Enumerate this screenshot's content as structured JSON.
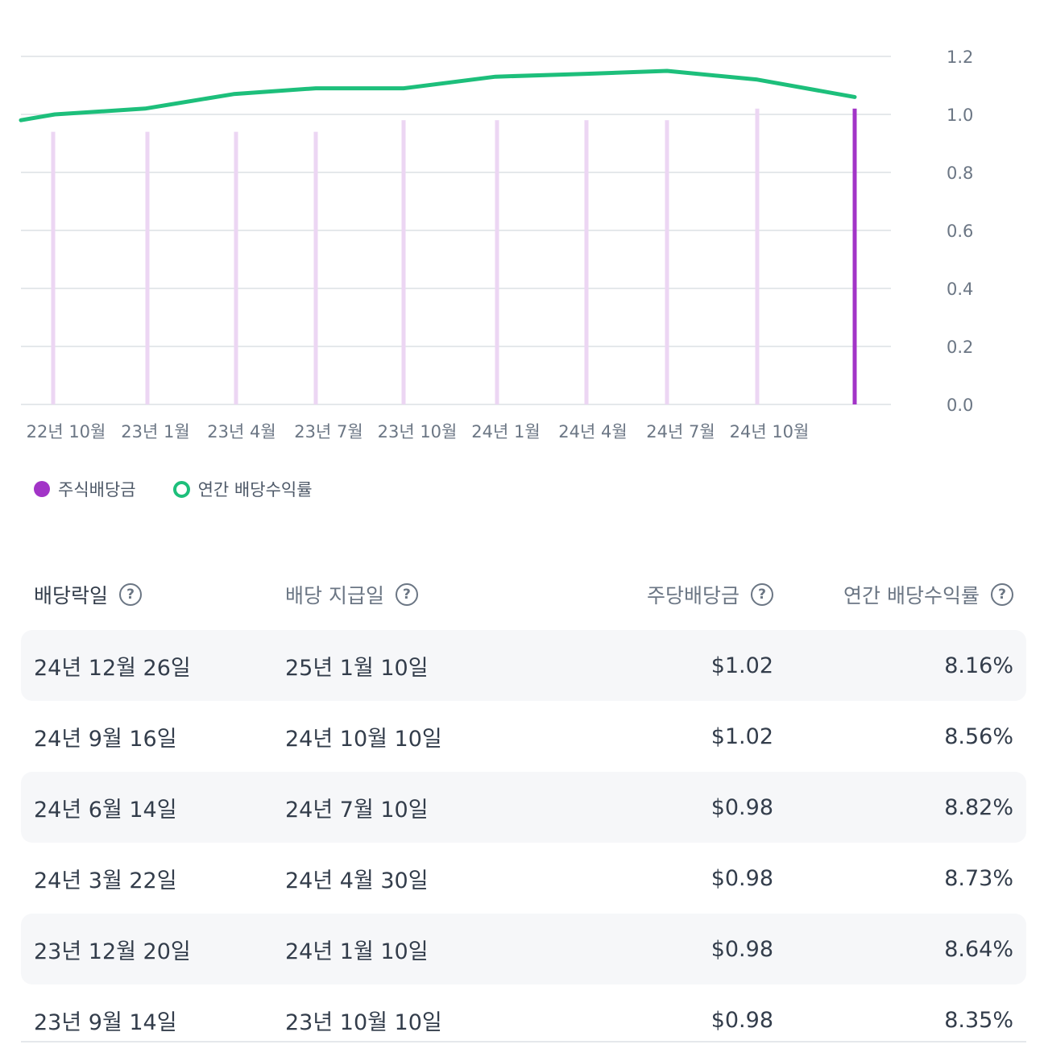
{
  "chart_data": {
    "type": "bar+line",
    "y_ticks": [
      "1.2",
      "1.0",
      "0.8",
      "0.6",
      "0.4",
      "0.2",
      "0.0"
    ],
    "ylim": [
      0,
      1.2
    ],
    "x_tick_labels": [
      "22년 10월",
      "23년 1월",
      "23년 4월",
      "23년 7월",
      "23년 10월",
      "24년 1월",
      "24년 4월",
      "24년 7월",
      "24년 10월"
    ],
    "grid": true,
    "bars": {
      "name": "주식배당금",
      "color_faded": "#ecd6f3",
      "color_highlight": "#a234c7",
      "values": [
        0.94,
        0.94,
        0.94,
        0.94,
        0.98,
        0.98,
        0.98,
        0.98,
        1.02,
        1.02
      ],
      "highlight_index": 9
    },
    "line": {
      "name": "연간 배당수익률",
      "color": "#1dbf7b",
      "values": [
        0.98,
        1.0,
        1.02,
        1.07,
        1.09,
        1.09,
        1.13,
        1.14,
        1.15,
        1.12,
        1.06
      ]
    }
  },
  "legend": {
    "dividend": "주식배당금",
    "yield": "연간 배당수익률"
  },
  "table": {
    "headers": {
      "ex_date": "배당락일",
      "pay_date": "배당 지급일",
      "dps": "주당배당금",
      "yield": "연간 배당수익률",
      "help_glyph": "?"
    },
    "rows": [
      {
        "ex_date": "24년 12월 26일",
        "pay_date": "25년 1월 10일",
        "dps": "$1.02",
        "yield": "8.16%"
      },
      {
        "ex_date": "24년 9월 16일",
        "pay_date": "24년 10월 10일",
        "dps": "$1.02",
        "yield": "8.56%"
      },
      {
        "ex_date": "24년 6월 14일",
        "pay_date": "24년 7월 10일",
        "dps": "$0.98",
        "yield": "8.82%"
      },
      {
        "ex_date": "24년 3월 22일",
        "pay_date": "24년 4월 30일",
        "dps": "$0.98",
        "yield": "8.73%"
      },
      {
        "ex_date": "23년 12월 20일",
        "pay_date": "24년 1월 10일",
        "dps": "$0.98",
        "yield": "8.64%"
      },
      {
        "ex_date": "23년 9월 14일",
        "pay_date": "23년 10월 10일",
        "dps": "$0.98",
        "yield": "8.35%"
      }
    ]
  }
}
